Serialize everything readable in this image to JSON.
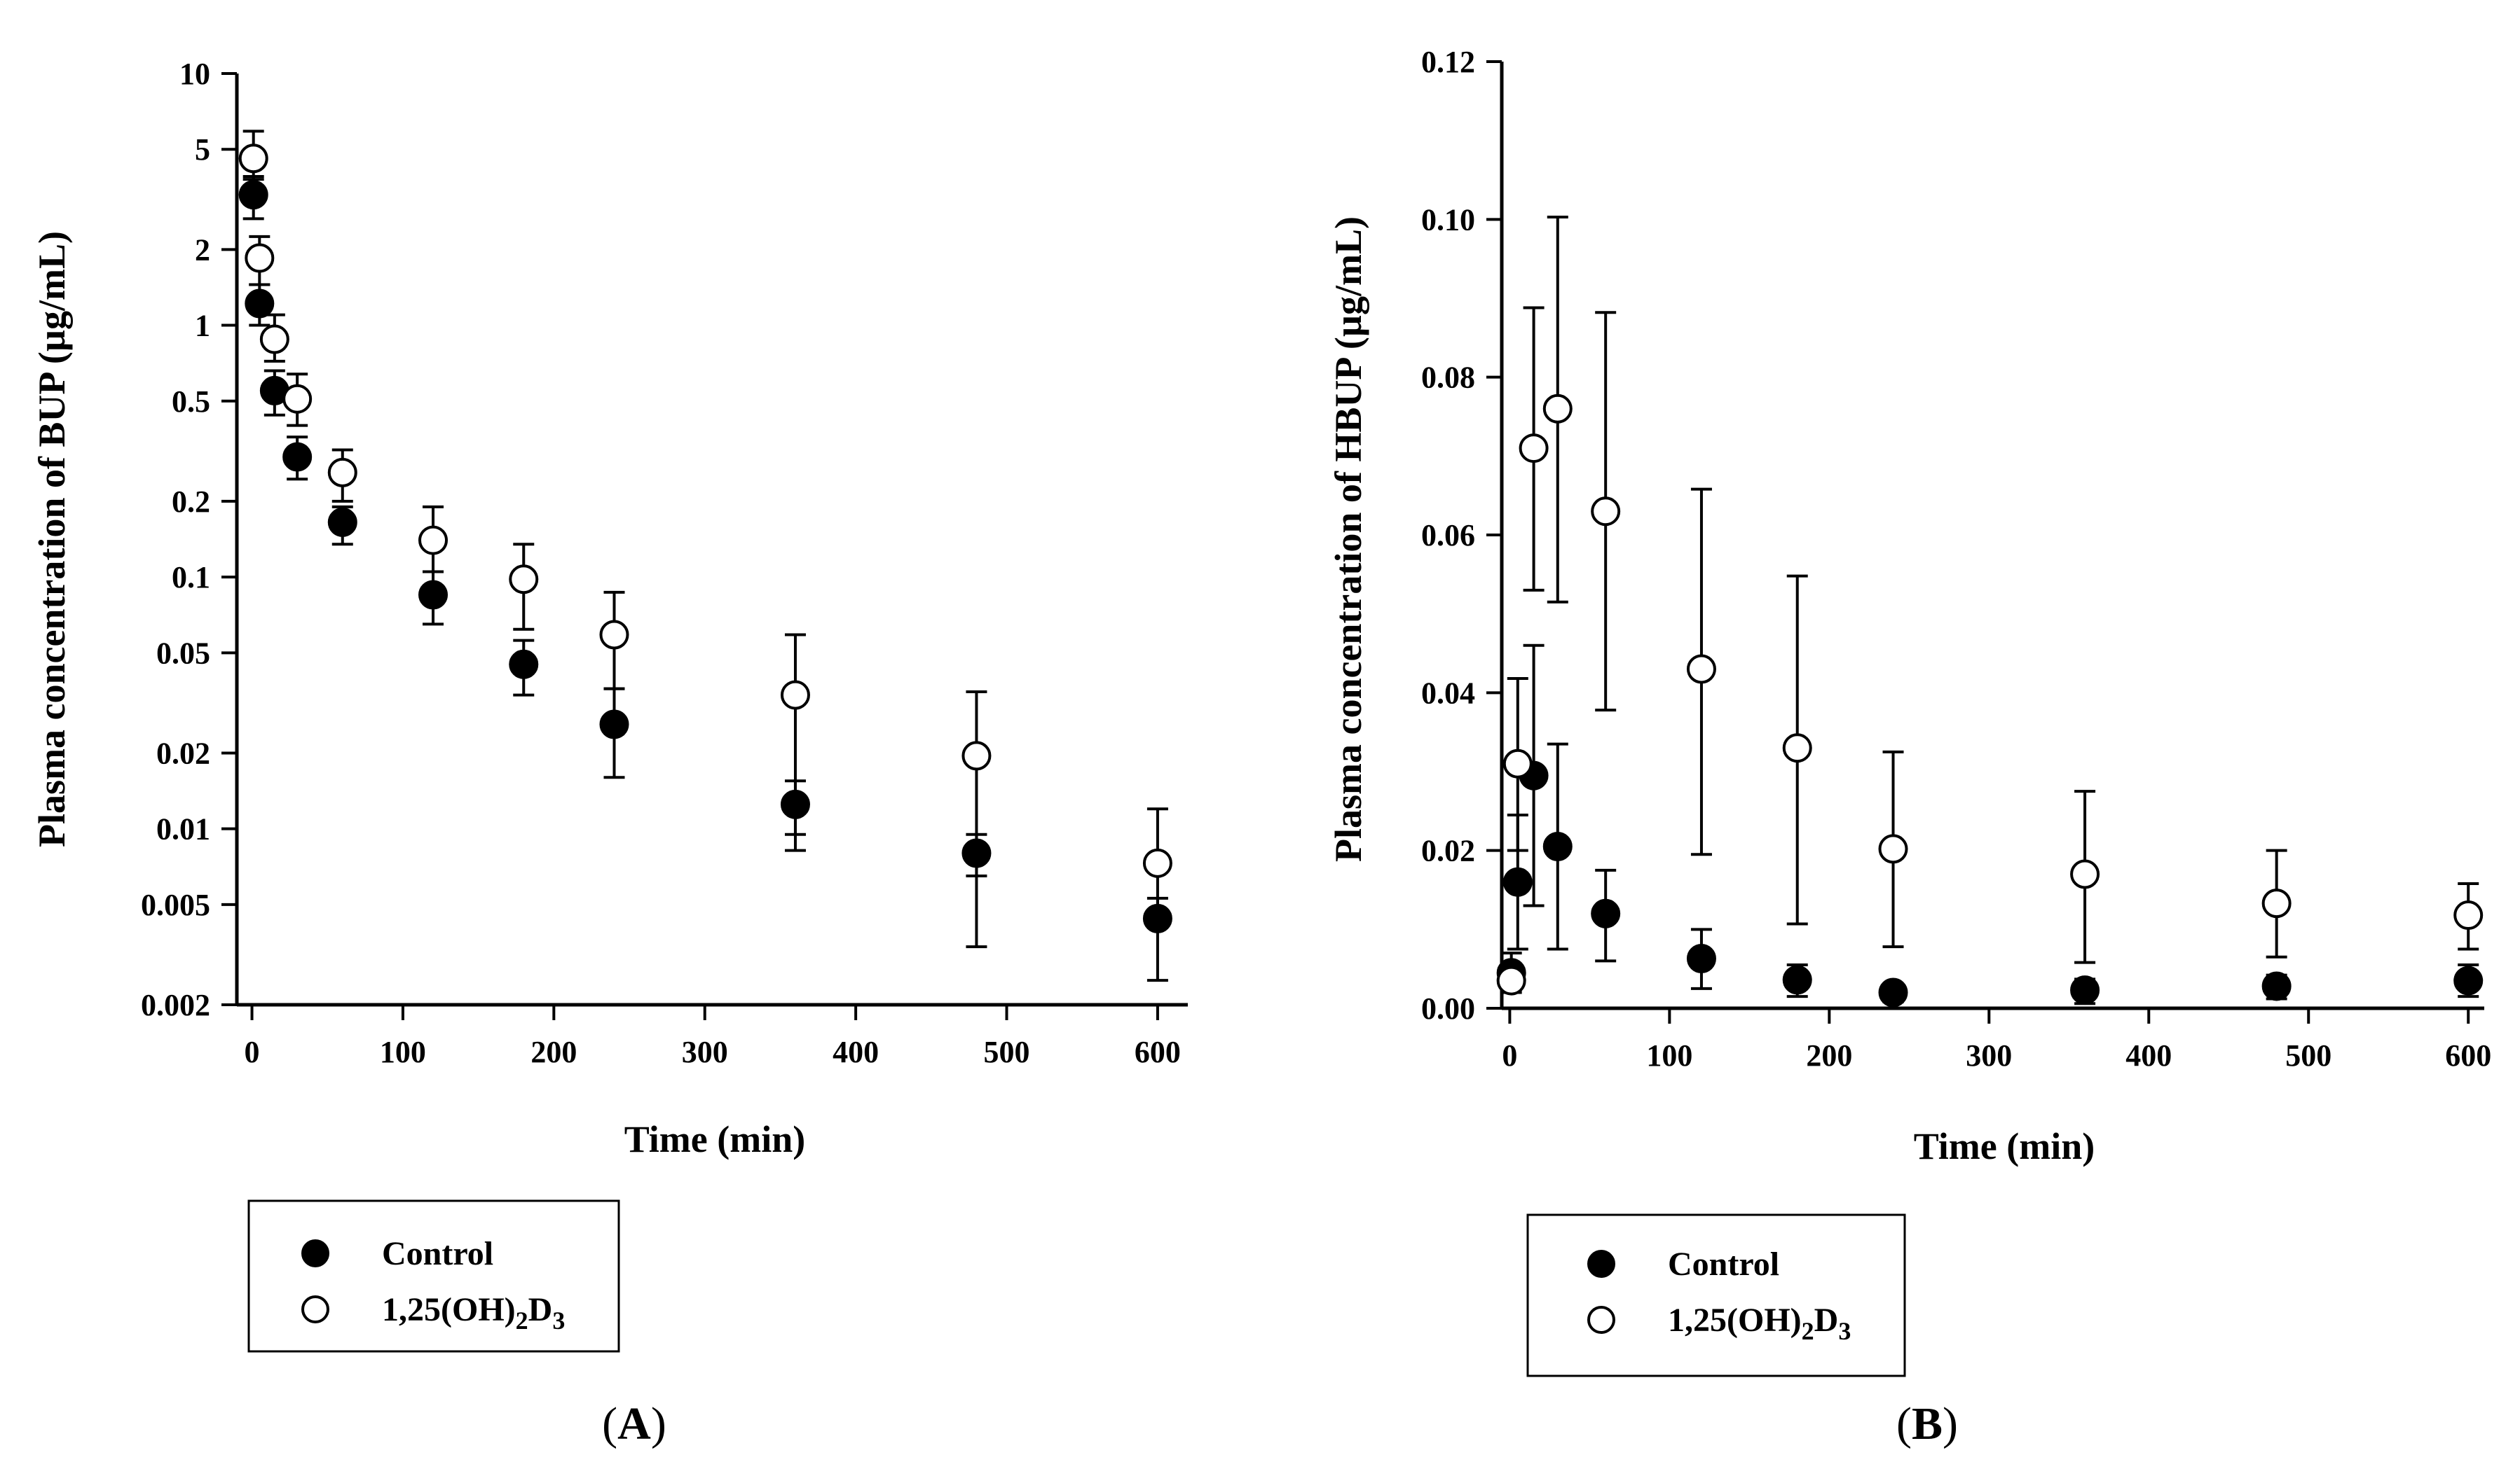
{
  "chart_data": [
    {
      "type": "scatter",
      "panel": "A",
      "panel_label_open": "(",
      "panel_label_letter": "A",
      "panel_label_close": ")",
      "title": "",
      "xlabel": "Time (min)",
      "ylabel": "Plasma concentration of BUP (µg/mL)",
      "yscale": "log",
      "xlim": [
        -10,
        620
      ],
      "ylim": [
        0.002,
        10
      ],
      "x_ticks": [
        0,
        100,
        200,
        300,
        400,
        500,
        600
      ],
      "x_tick_labels": [
        "0",
        "100",
        "200",
        "300",
        "400",
        "500",
        "600"
      ],
      "y_ticks": [
        0.002,
        0.005,
        0.01,
        0.02,
        0.05,
        0.1,
        0.2,
        0.5,
        1,
        2,
        5,
        10
      ],
      "y_tick_labels": [
        "0.002",
        "0.005",
        "0.01",
        "0.02",
        "0.05",
        "0.1",
        "0.2",
        "0.5",
        "1",
        "2",
        "5",
        "10"
      ],
      "legend": {
        "placement": "below-left",
        "control": "Control",
        "treated_prefix": "1,25(OH)",
        "treated_sub1": "2",
        "treated_mid": "D",
        "treated_sub2": "3"
      },
      "series": [
        {
          "name": "Control",
          "marker": "filled-circle",
          "x": [
            1,
            5,
            15,
            30,
            60,
            120,
            180,
            240,
            360,
            480,
            600
          ],
          "y": [
            3.3,
            1.22,
            0.55,
            0.3,
            0.165,
            0.085,
            0.045,
            0.026,
            0.0125,
            0.008,
            0.0044
          ],
          "err_lo": [
            2.65,
            1.0,
            0.44,
            0.245,
            0.135,
            0.065,
            0.034,
            0.016,
            0.0082,
            0.0034,
            0.0025
          ],
          "err_hi": [
            3.9,
            1.45,
            0.66,
            0.36,
            0.19,
            0.105,
            0.056,
            0.036,
            0.0155,
            0.0095,
            0.0053
          ]
        },
        {
          "name": "1,25(OH)2D3",
          "marker": "open-circle",
          "x": [
            1,
            5,
            15,
            30,
            60,
            120,
            180,
            240,
            360,
            480,
            600
          ],
          "y": [
            4.6,
            1.85,
            0.88,
            0.51,
            0.26,
            0.14,
            0.098,
            0.059,
            0.034,
            0.0195,
            0.0073
          ],
          "err_lo": [
            3.8,
            1.45,
            0.72,
            0.4,
            0.2,
            0.105,
            0.062,
            0.036,
            0.0095,
            0.0065,
            0.0042
          ],
          "err_hi": [
            5.9,
            2.25,
            1.1,
            0.64,
            0.32,
            0.19,
            0.135,
            0.087,
            0.059,
            0.035,
            0.012
          ]
        }
      ]
    },
    {
      "type": "scatter",
      "panel": "B",
      "panel_label_open": "(",
      "panel_label_letter": "B",
      "panel_label_close": ")",
      "title": "",
      "xlabel": "Time (min)",
      "ylabel": "Plasma concentration of HBUP (µg/mL)",
      "yscale": "linear",
      "xlim": [
        -5,
        610
      ],
      "ylim": [
        0,
        0.12
      ],
      "x_ticks": [
        0,
        100,
        200,
        300,
        400,
        500,
        600
      ],
      "x_tick_labels": [
        "0",
        "100",
        "200",
        "300",
        "400",
        "500",
        "600"
      ],
      "y_ticks": [
        0,
        0.02,
        0.04,
        0.06,
        0.08,
        0.1,
        0.12
      ],
      "y_tick_labels": [
        "0.00",
        "0.02",
        "0.04",
        "0.06",
        "0.08",
        "0.10",
        "0.12"
      ],
      "legend": {
        "placement": "below-left",
        "control": "Control",
        "treated_prefix": "1,25(OH)",
        "treated_sub1": "2",
        "treated_mid": "D",
        "treated_sub2": "3"
      },
      "series": [
        {
          "name": "Control",
          "marker": "filled-circle",
          "x": [
            1,
            5,
            15,
            30,
            60,
            120,
            180,
            240,
            360,
            480,
            600
          ],
          "y": [
            0.0045,
            0.016,
            0.0295,
            0.0205,
            0.012,
            0.0063,
            0.0036,
            0.002,
            0.0023,
            0.0028,
            0.0035
          ],
          "err_lo": [
            0.0025,
            0.0075,
            0.013,
            0.0075,
            0.006,
            0.0025,
            0.0015,
            0.0008,
            0.0006,
            0.0012,
            0.0015
          ],
          "err_hi": [
            0.007,
            0.0245,
            0.046,
            0.0335,
            0.0175,
            0.01,
            0.0055,
            0.0027,
            0.0037,
            0.0042,
            0.0055
          ]
        },
        {
          "name": "1,25(OH)2D3",
          "marker": "open-circle",
          "x": [
            1,
            5,
            15,
            30,
            60,
            120,
            180,
            240,
            360,
            480,
            600
          ],
          "y": [
            0.0035,
            0.031,
            0.071,
            0.076,
            0.063,
            0.043,
            0.033,
            0.0202,
            0.017,
            0.0133,
            0.0118
          ],
          "err_lo": [
            0.002,
            0.02,
            0.053,
            0.0515,
            0.0378,
            0.0195,
            0.0107,
            0.0078,
            0.0058,
            0.0065,
            0.0075
          ],
          "err_hi": [
            0.005,
            0.0418,
            0.0888,
            0.1003,
            0.0882,
            0.0658,
            0.0548,
            0.0325,
            0.0275,
            0.02,
            0.0158
          ]
        }
      ]
    }
  ]
}
